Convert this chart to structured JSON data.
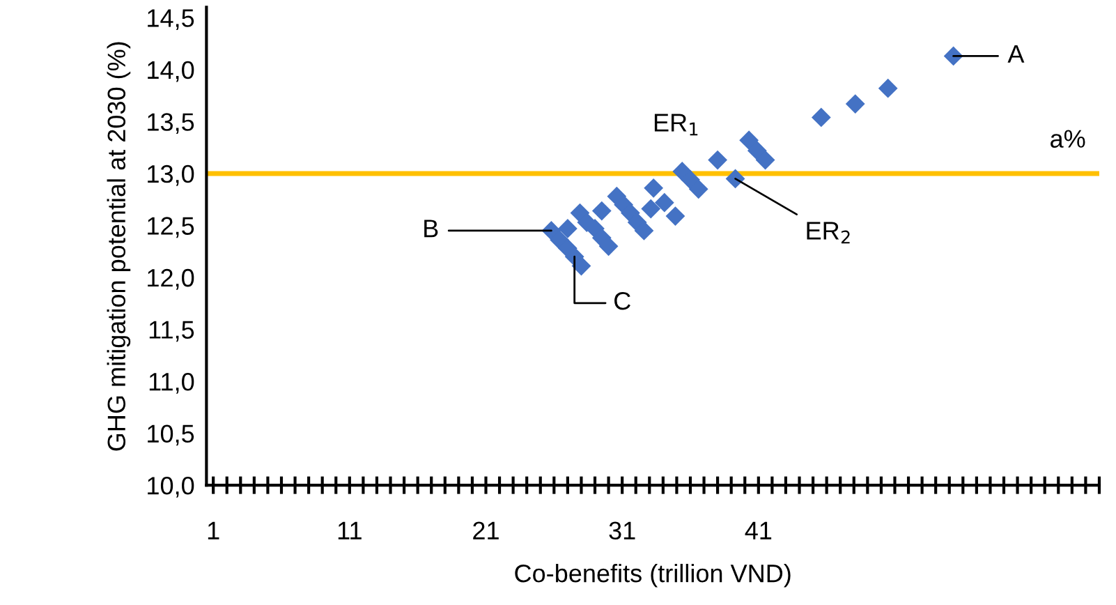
{
  "chart_data": {
    "type": "scatter",
    "xlabel": "Co-benefits (trillion VND)",
    "ylabel": "GHG mitigation potential at 2030 (%)",
    "xlim": [
      0.5,
      66
    ],
    "xticks": [
      1,
      11,
      21,
      31,
      41
    ],
    "ylim": [
      10,
      14.6
    ],
    "yticks": [
      {
        "value": 10,
        "label": "10,0"
      },
      {
        "value": 10.5,
        "label": "10,5"
      },
      {
        "value": 11,
        "label": "11,0"
      },
      {
        "value": 11.5,
        "label": "11,5"
      },
      {
        "value": 12,
        "label": "12,0"
      },
      {
        "value": 12.5,
        "label": "12,5"
      },
      {
        "value": 13,
        "label": "13,0"
      },
      {
        "value": 13.5,
        "label": "13,5"
      },
      {
        "value": 14,
        "label": "14,0"
      },
      {
        "value": 14.5,
        "label": "14,5"
      }
    ],
    "marker": "diamond",
    "grid": false,
    "legend": false,
    "series": [
      {
        "color": "#4472c4",
        "x": [
          25.8,
          26.4,
          27.0,
          27.5,
          28.0,
          27.0,
          27.9,
          28.4,
          29.0,
          29.5,
          30.0,
          29.5,
          30.6,
          31.1,
          31.6,
          32.1,
          32.6,
          33.1,
          33.3,
          34.1,
          34.9,
          35.4,
          36.0,
          36.6,
          38.0,
          39.3,
          40.3,
          40.9,
          41.5,
          45.6,
          48.1,
          50.5,
          55.3
        ],
        "values": [
          12.45,
          12.36,
          12.28,
          12.2,
          12.11,
          12.47,
          12.62,
          12.53,
          12.47,
          12.38,
          12.3,
          12.64,
          12.78,
          12.7,
          12.62,
          12.53,
          12.45,
          12.66,
          12.86,
          12.72,
          12.59,
          13.02,
          12.94,
          12.85,
          13.13,
          12.95,
          13.32,
          13.22,
          13.13,
          13.54,
          13.67,
          13.82,
          14.13
        ]
      }
    ],
    "ref_lines": [
      {
        "axis": "y",
        "value": 13,
        "label": "a%",
        "color": "#ffc000",
        "line_style": "solid"
      }
    ],
    "annotations": [
      {
        "text": "A",
        "x": 55.3,
        "y": 14.13
      },
      {
        "text": "B",
        "x": 25.8,
        "y": 12.45
      },
      {
        "text": "C",
        "x": 27.5,
        "y": 12.2
      },
      {
        "text": "ER$_{1}$",
        "x": 35.4,
        "y": 13.02
      },
      {
        "text": "ER$_{2}$",
        "x": 39.3,
        "y": 12.95
      }
    ]
  }
}
